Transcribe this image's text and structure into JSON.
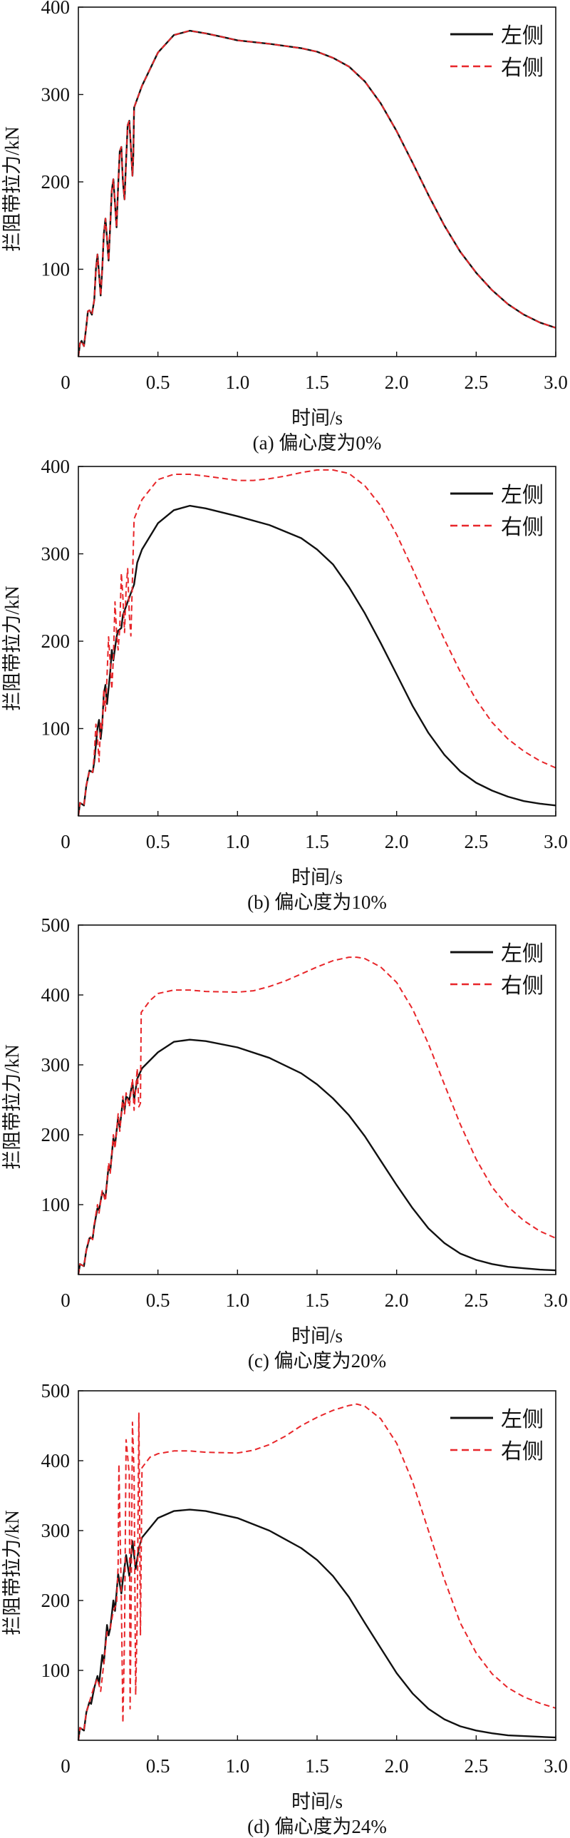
{
  "colors": {
    "left": "#111111",
    "right": "#e8262a"
  },
  "chart_data": [
    {
      "type": "line",
      "caption": "(a) 偏心度为0%",
      "xlabel": "时间/s",
      "ylabel": "拦阻带拉力/kN",
      "xlim": [
        0,
        3.0
      ],
      "ylim": [
        0,
        400
      ],
      "xticks": [
        0,
        0.5,
        1.0,
        1.5,
        2.0,
        2.5,
        3.0
      ],
      "xtick_labels": [
        "0",
        "0.5",
        "1.0",
        "1.5",
        "2.0",
        "2.5",
        "3.0"
      ],
      "yticks": [
        100,
        200,
        300,
        400
      ],
      "ytick_labels": [
        "100",
        "200",
        "300",
        "400"
      ],
      "legend_position": "top-right",
      "grid": false,
      "series": [
        {
          "name": "左侧",
          "style": "solid",
          "x": [
            0,
            0.01,
            0.02,
            0.035,
            0.05,
            0.06,
            0.07,
            0.085,
            0.1,
            0.11,
            0.12,
            0.13,
            0.14,
            0.15,
            0.16,
            0.17,
            0.18,
            0.19,
            0.2,
            0.21,
            0.22,
            0.23,
            0.24,
            0.25,
            0.26,
            0.27,
            0.28,
            0.29,
            0.3,
            0.31,
            0.32,
            0.33,
            0.34,
            0.345,
            0.35,
            0.4,
            0.5,
            0.6,
            0.7,
            0.8,
            0.9,
            1.0,
            1.2,
            1.4,
            1.5,
            1.6,
            1.7,
            1.8,
            1.9,
            2.0,
            2.1,
            2.2,
            2.3,
            2.4,
            2.5,
            2.6,
            2.7,
            2.8,
            2.9,
            3.0
          ],
          "y": [
            0,
            15,
            18,
            12,
            35,
            52,
            53,
            48,
            65,
            100,
            117,
            95,
            70,
            100,
            140,
            158,
            135,
            110,
            150,
            190,
            203,
            175,
            148,
            195,
            235,
            240,
            200,
            180,
            225,
            265,
            270,
            240,
            207,
            230,
            285,
            310,
            348,
            368,
            373,
            370,
            366,
            362,
            358,
            353,
            349,
            342,
            332,
            315,
            290,
            258,
            222,
            185,
            150,
            120,
            96,
            76,
            60,
            48,
            39,
            33
          ]
        },
        {
          "name": "右侧",
          "style": "dashed",
          "x": [
            0,
            0.01,
            0.02,
            0.035,
            0.05,
            0.06,
            0.07,
            0.085,
            0.1,
            0.11,
            0.12,
            0.13,
            0.14,
            0.15,
            0.16,
            0.17,
            0.18,
            0.19,
            0.2,
            0.21,
            0.22,
            0.23,
            0.24,
            0.25,
            0.26,
            0.27,
            0.28,
            0.29,
            0.3,
            0.31,
            0.32,
            0.33,
            0.34,
            0.345,
            0.35,
            0.4,
            0.5,
            0.6,
            0.7,
            0.8,
            0.9,
            1.0,
            1.2,
            1.4,
            1.5,
            1.6,
            1.7,
            1.8,
            1.9,
            2.0,
            2.1,
            2.2,
            2.3,
            2.4,
            2.5,
            2.6,
            2.7,
            2.8,
            2.9,
            3.0
          ],
          "y": [
            0,
            15,
            18,
            12,
            35,
            52,
            53,
            48,
            65,
            100,
            117,
            95,
            70,
            100,
            140,
            158,
            135,
            110,
            150,
            190,
            203,
            175,
            148,
            195,
            235,
            240,
            200,
            180,
            225,
            265,
            270,
            240,
            207,
            230,
            285,
            310,
            348,
            368,
            373,
            370,
            366,
            362,
            358,
            353,
            349,
            342,
            332,
            315,
            290,
            258,
            222,
            185,
            150,
            120,
            96,
            76,
            60,
            48,
            39,
            33
          ]
        }
      ]
    },
    {
      "type": "line",
      "caption": "(b) 偏心度为10%",
      "xlabel": "时间/s",
      "ylabel": "拦阻带拉力/kN",
      "xlim": [
        0,
        3.0
      ],
      "ylim": [
        0,
        400
      ],
      "xticks": [
        0,
        0.5,
        1.0,
        1.5,
        2.0,
        2.5,
        3.0
      ],
      "xtick_labels": [
        "0",
        "0.5",
        "1.0",
        "1.5",
        "2.0",
        "2.5",
        "3.0"
      ],
      "yticks": [
        100,
        200,
        300,
        400
      ],
      "ytick_labels": [
        "100",
        "200",
        "300",
        "400"
      ],
      "legend_position": "top-right",
      "grid": false,
      "series": [
        {
          "name": "左侧",
          "style": "solid",
          "x": [
            0,
            0.01,
            0.035,
            0.05,
            0.07,
            0.09,
            0.1,
            0.12,
            0.13,
            0.14,
            0.15,
            0.16,
            0.17,
            0.18,
            0.2,
            0.21,
            0.22,
            0.24,
            0.25,
            0.27,
            0.28,
            0.3,
            0.31,
            0.33,
            0.35,
            0.37,
            0.4,
            0.5,
            0.6,
            0.7,
            0.8,
            1.0,
            1.2,
            1.4,
            1.5,
            1.6,
            1.7,
            1.8,
            1.9,
            2.0,
            2.1,
            2.2,
            2.3,
            2.4,
            2.5,
            2.6,
            2.7,
            2.8,
            2.9,
            3.0
          ],
          "y": [
            0,
            15,
            12,
            35,
            52,
            50,
            62,
            100,
            110,
            88,
            105,
            140,
            150,
            128,
            165,
            190,
            178,
            205,
            212,
            215,
            230,
            240,
            245,
            255,
            265,
            290,
            305,
            335,
            350,
            355,
            352,
            343,
            333,
            318,
            305,
            288,
            262,
            232,
            198,
            162,
            126,
            95,
            70,
            51,
            38,
            29,
            22,
            17,
            14,
            12
          ]
        },
        {
          "name": "右侧",
          "style": "dashed",
          "x": [
            0,
            0.01,
            0.035,
            0.05,
            0.07,
            0.09,
            0.1,
            0.11,
            0.12,
            0.13,
            0.14,
            0.15,
            0.16,
            0.17,
            0.18,
            0.19,
            0.2,
            0.21,
            0.22,
            0.23,
            0.24,
            0.25,
            0.26,
            0.27,
            0.28,
            0.29,
            0.3,
            0.31,
            0.32,
            0.33,
            0.35,
            0.4,
            0.5,
            0.6,
            0.7,
            0.8,
            1.0,
            1.1,
            1.2,
            1.3,
            1.4,
            1.5,
            1.6,
            1.7,
            1.8,
            1.9,
            2.0,
            2.1,
            2.2,
            2.3,
            2.4,
            2.5,
            2.6,
            2.7,
            2.8,
            2.9,
            3.0
          ],
          "y": [
            0,
            15,
            12,
            35,
            52,
            50,
            70,
            105,
            90,
            62,
            108,
            100,
            145,
            120,
            160,
            205,
            175,
            145,
            180,
            245,
            210,
            190,
            215,
            278,
            250,
            210,
            260,
            283,
            230,
            206,
            340,
            362,
            385,
            391,
            391,
            389,
            384,
            384,
            386,
            389,
            393,
            396,
            396,
            392,
            378,
            355,
            322,
            283,
            242,
            202,
            165,
            133,
            107,
            88,
            74,
            63,
            55
          ]
        }
      ]
    },
    {
      "type": "line",
      "caption": "(c) 偏心度为20%",
      "xlabel": "时间/s",
      "ylabel": "拦阻带拉力/kN",
      "xlim": [
        0,
        3.0
      ],
      "ylim": [
        0,
        500
      ],
      "xticks": [
        0,
        0.5,
        1.0,
        1.5,
        2.0,
        2.5,
        3.0
      ],
      "xtick_labels": [
        "0",
        "0.5",
        "1.0",
        "1.5",
        "2.0",
        "2.5",
        "3.0"
      ],
      "yticks": [
        100,
        200,
        300,
        400,
        500
      ],
      "ytick_labels": [
        "100",
        "200",
        "300",
        "400",
        "500"
      ],
      "legend_position": "top-right",
      "grid": false,
      "series": [
        {
          "name": "左侧",
          "style": "solid",
          "x": [
            0,
            0.01,
            0.035,
            0.05,
            0.07,
            0.09,
            0.1,
            0.12,
            0.13,
            0.15,
            0.17,
            0.19,
            0.2,
            0.22,
            0.23,
            0.25,
            0.26,
            0.28,
            0.29,
            0.3,
            0.32,
            0.34,
            0.35,
            0.37,
            0.4,
            0.5,
            0.6,
            0.7,
            0.8,
            1.0,
            1.2,
            1.4,
            1.5,
            1.6,
            1.7,
            1.8,
            1.9,
            2.0,
            2.1,
            2.2,
            2.3,
            2.4,
            2.5,
            2.6,
            2.7,
            2.8,
            2.9,
            3.0
          ],
          "y": [
            0,
            15,
            12,
            35,
            52,
            52,
            70,
            95,
            92,
            118,
            110,
            155,
            148,
            195,
            185,
            225,
            210,
            250,
            235,
            255,
            250,
            275,
            250,
            280,
            295,
            318,
            333,
            336,
            334,
            325,
            310,
            288,
            272,
            252,
            228,
            198,
            163,
            128,
            95,
            66,
            45,
            30,
            21,
            15,
            11,
            9,
            7,
            6
          ]
        },
        {
          "name": "右侧",
          "style": "dashed",
          "x": [
            0,
            0.01,
            0.035,
            0.05,
            0.07,
            0.09,
            0.1,
            0.12,
            0.13,
            0.15,
            0.17,
            0.19,
            0.2,
            0.22,
            0.23,
            0.25,
            0.26,
            0.28,
            0.29,
            0.3,
            0.32,
            0.34,
            0.35,
            0.37,
            0.38,
            0.39,
            0.395,
            0.45,
            0.5,
            0.6,
            0.7,
            0.8,
            1.0,
            1.1,
            1.2,
            1.3,
            1.4,
            1.5,
            1.6,
            1.7,
            1.75,
            1.8,
            1.9,
            2.0,
            2.1,
            2.2,
            2.3,
            2.4,
            2.5,
            2.6,
            2.7,
            2.8,
            2.9,
            3.0
          ],
          "y": [
            0,
            15,
            12,
            35,
            55,
            50,
            72,
            100,
            88,
            120,
            105,
            160,
            145,
            200,
            180,
            230,
            205,
            255,
            230,
            260,
            240,
            280,
            235,
            295,
            240,
            245,
            375,
            392,
            402,
            407,
            407,
            405,
            404,
            406,
            412,
            420,
            430,
            440,
            449,
            454,
            454,
            452,
            440,
            418,
            380,
            330,
            272,
            215,
            165,
            125,
            97,
            77,
            62,
            52
          ]
        }
      ]
    },
    {
      "type": "line",
      "caption": "(d) 偏心度为24%",
      "xlabel": "时间/s",
      "ylabel": "拦阻带拉力/kN",
      "xlim": [
        0,
        3.0
      ],
      "ylim": [
        0,
        500
      ],
      "xticks": [
        0,
        0.5,
        1.0,
        1.5,
        2.0,
        2.5,
        3.0
      ],
      "xtick_labels": [
        "0",
        "0.5",
        "1.0",
        "1.5",
        "2.0",
        "2.5",
        "3.0"
      ],
      "yticks": [
        100,
        200,
        300,
        400,
        500
      ],
      "ytick_labels": [
        "100",
        "200",
        "300",
        "400",
        "500"
      ],
      "legend_position": "top-right",
      "grid": false,
      "series": [
        {
          "name": "左侧",
          "style": "solid",
          "x": [
            0,
            0.01,
            0.035,
            0.05,
            0.07,
            0.08,
            0.1,
            0.12,
            0.13,
            0.15,
            0.16,
            0.18,
            0.19,
            0.2,
            0.22,
            0.23,
            0.25,
            0.27,
            0.28,
            0.3,
            0.31,
            0.32,
            0.34,
            0.36,
            0.38,
            0.4,
            0.5,
            0.6,
            0.7,
            0.8,
            1.0,
            1.2,
            1.4,
            1.5,
            1.6,
            1.7,
            1.8,
            1.9,
            2.0,
            2.1,
            2.2,
            2.3,
            2.4,
            2.5,
            2.6,
            2.7,
            2.8,
            2.9,
            3.0
          ],
          "y": [
            0,
            18,
            14,
            40,
            55,
            52,
            75,
            92,
            80,
            122,
            110,
            165,
            150,
            160,
            200,
            185,
            238,
            210,
            230,
            265,
            250,
            235,
            285,
            245,
            275,
            290,
            318,
            328,
            330,
            328,
            318,
            300,
            275,
            258,
            235,
            205,
            168,
            132,
            96,
            67,
            45,
            30,
            20,
            14,
            10,
            7,
            6,
            5,
            4
          ]
        },
        {
          "name": "右侧",
          "style": "dashed",
          "x": [
            0,
            0.01,
            0.035,
            0.05,
            0.07,
            0.1,
            0.12,
            0.14,
            0.16,
            0.18,
            0.2,
            0.22,
            0.24,
            0.25,
            0.255,
            0.27,
            0.28,
            0.29,
            0.3,
            0.32,
            0.325,
            0.33,
            0.34,
            0.35,
            0.36,
            0.37,
            0.38,
            0.39,
            0.4,
            0.45,
            0.5,
            0.6,
            0.7,
            0.8,
            1.0,
            1.1,
            1.2,
            1.3,
            1.4,
            1.5,
            1.6,
            1.7,
            1.75,
            1.8,
            1.9,
            2.0,
            2.1,
            2.2,
            2.3,
            2.4,
            2.5,
            2.6,
            2.7,
            2.8,
            2.9,
            3.0
          ],
          "y": [
            0,
            18,
            14,
            40,
            55,
            78,
            88,
            70,
            110,
            155,
            160,
            185,
            195,
            250,
            395,
            200,
            25,
            150,
            430,
            380,
            45,
            150,
            455,
            380,
            65,
            175,
            468,
            150,
            390,
            405,
            410,
            414,
            414,
            412,
            411,
            415,
            423,
            435,
            450,
            462,
            472,
            479,
            481,
            478,
            460,
            425,
            370,
            300,
            230,
            168,
            125,
            95,
            75,
            62,
            53,
            46
          ]
        }
      ]
    }
  ]
}
